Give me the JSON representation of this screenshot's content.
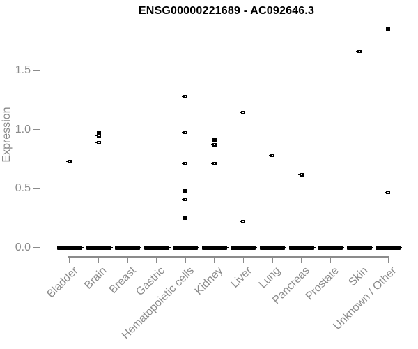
{
  "title": "ENSG00000221689 - AC092646.3",
  "y_axis": {
    "label": "Expression",
    "ticks": [
      {
        "label": "0.0",
        "value": 0.0
      },
      {
        "label": "0.5",
        "value": 0.5
      },
      {
        "label": "1.0",
        "value": 1.0
      },
      {
        "label": "1.5",
        "value": 1.5
      }
    ]
  },
  "colors": {
    "points": "#000000",
    "axis": "#8b8b8b",
    "axis_text": "#8b8b8b",
    "title_text": "#000000",
    "background": "#ffffff"
  },
  "chart_data": {
    "type": "scatter",
    "title": "ENSG00000221689 - AC092646.3",
    "xlabel": "",
    "ylabel": "Expression",
    "ylim": [
      0.0,
      1.9
    ],
    "yticks": [
      0.0,
      0.5,
      1.0,
      1.5
    ],
    "grid": false,
    "legend": false,
    "marker": "small black open square",
    "categories": [
      "Bladder",
      "Brain",
      "Breast",
      "Gastric",
      "Hematopoietic cells",
      "Kidney",
      "Liver",
      "Lung",
      "Pancreas",
      "Prostate",
      "Skin",
      "Unknown / Other"
    ],
    "series": [
      {
        "name": "Bladder",
        "values": [
          0.73
        ]
      },
      {
        "name": "Brain",
        "values": [
          0.97,
          0.95,
          0.89
        ]
      },
      {
        "name": "Breast",
        "values": []
      },
      {
        "name": "Gastric",
        "values": []
      },
      {
        "name": "Hematopoietic cells",
        "values": [
          1.28,
          0.98,
          0.71,
          0.48,
          0.41,
          0.25
        ]
      },
      {
        "name": "Kidney",
        "values": [
          0.91,
          0.87,
          0.71
        ]
      },
      {
        "name": "Liver",
        "values": [
          1.14,
          0.22
        ]
      },
      {
        "name": "Lung",
        "values": [
          0.78
        ]
      },
      {
        "name": "Pancreas",
        "values": [
          0.62
        ]
      },
      {
        "name": "Prostate",
        "values": []
      },
      {
        "name": "Skin",
        "values": [
          1.66
        ]
      },
      {
        "name": "Unknown / Other",
        "values": [
          1.85,
          0.47
        ]
      }
    ],
    "baseline_cluster": {
      "value": 0.0,
      "present_for_all_categories": true,
      "description": "dense overlapping points at expression 0 shown as a thick black dash under every category"
    }
  }
}
